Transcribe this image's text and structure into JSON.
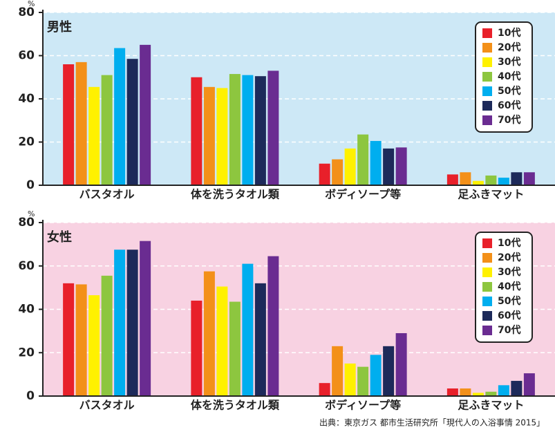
{
  "chart_data": [
    {
      "type": "bar",
      "title": "男性",
      "y_unit": "%",
      "background": "#cde8f6",
      "categories": [
        "バスタオル",
        "体を洗うタオル類",
        "ボディソープ等",
        "足ふきマット"
      ],
      "ylim": [
        0,
        80
      ],
      "yticks": [
        0,
        20,
        40,
        60,
        80
      ],
      "grid": true,
      "series": [
        {
          "name": "10代",
          "color": "#e8202a",
          "values": [
            56,
            50,
            10,
            5
          ]
        },
        {
          "name": "20代",
          "color": "#f39019",
          "values": [
            57,
            45.5,
            12,
            6
          ]
        },
        {
          "name": "30代",
          "color": "#fff100",
          "values": [
            45.5,
            45,
            17,
            2
          ]
        },
        {
          "name": "40代",
          "color": "#8dc63f",
          "values": [
            51,
            51.5,
            23.5,
            4.5
          ]
        },
        {
          "name": "50代",
          "color": "#00aeef",
          "values": [
            63.5,
            51,
            20.5,
            3.5
          ]
        },
        {
          "name": "60代",
          "color": "#1d2a5a",
          "values": [
            58.5,
            50.5,
            17,
            6
          ]
        },
        {
          "name": "70代",
          "color": "#6a2c91",
          "values": [
            65,
            53,
            17.5,
            6
          ]
        }
      ]
    },
    {
      "type": "bar",
      "title": "女性",
      "y_unit": "%",
      "background": "#f8d2e2",
      "categories": [
        "バスタオル",
        "体を洗うタオル類",
        "ボディソープ等",
        "足ふきマット"
      ],
      "ylim": [
        0,
        80
      ],
      "yticks": [
        0,
        20,
        40,
        60,
        80
      ],
      "grid": true,
      "series": [
        {
          "name": "10代",
          "color": "#e8202a",
          "values": [
            52,
            44,
            6,
            3.5
          ]
        },
        {
          "name": "20代",
          "color": "#f39019",
          "values": [
            51.5,
            57.5,
            23,
            3.5
          ]
        },
        {
          "name": "30代",
          "color": "#fff100",
          "values": [
            46.5,
            50.5,
            15,
            1.5
          ]
        },
        {
          "name": "40代",
          "color": "#8dc63f",
          "values": [
            55.5,
            43.5,
            13.5,
            2
          ]
        },
        {
          "name": "50代",
          "color": "#00aeef",
          "values": [
            67.5,
            61,
            19,
            5
          ]
        },
        {
          "name": "60代",
          "color": "#1d2a5a",
          "values": [
            67.5,
            52,
            23,
            7
          ]
        },
        {
          "name": "70代",
          "color": "#6a2c91",
          "values": [
            71.5,
            64.5,
            29,
            10.5
          ]
        }
      ]
    }
  ],
  "source": "出典：東京ガス 都市生活研究所「現代人の入浴事情 2015」"
}
